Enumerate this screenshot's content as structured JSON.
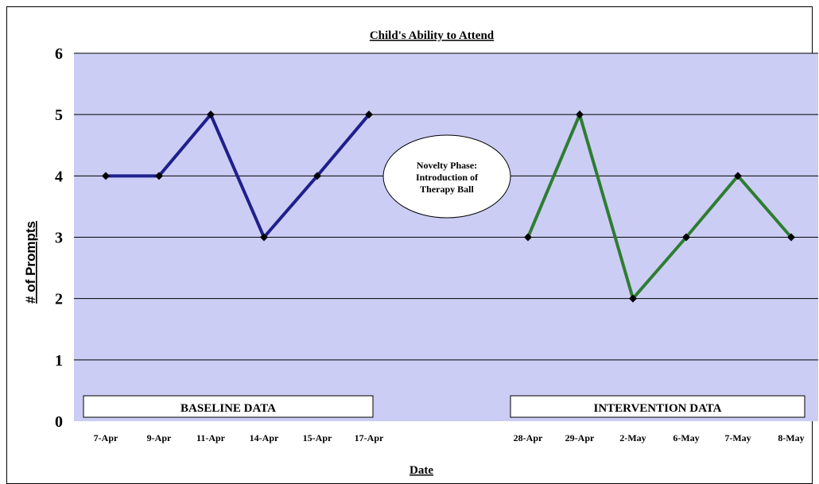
{
  "chart_data": {
    "type": "line",
    "title": "Child's Ability to Attend",
    "xlabel": "Date",
    "ylabel": "# of Prompts",
    "ylim": [
      0,
      6
    ],
    "yticks": [
      0,
      1,
      2,
      3,
      4,
      5,
      6
    ],
    "grid": true,
    "categories": [
      "7-Apr",
      "9-Apr",
      "11-Apr",
      "14-Apr",
      "15-Apr",
      "17-Apr",
      "28-Apr",
      "29-Apr",
      "2-May",
      "6-May",
      "7-May",
      "8-May"
    ],
    "series": [
      {
        "color": "#1f1f8c",
        "points": [
          {
            "x": "7-Apr",
            "y": 4
          },
          {
            "x": "9-Apr",
            "y": 4
          },
          {
            "x": "11-Apr",
            "y": 5
          },
          {
            "x": "14-Apr",
            "y": 3
          },
          {
            "x": "15-Apr",
            "y": 4
          },
          {
            "x": "17-Apr",
            "y": 5
          }
        ]
      },
      {
        "color": "#2e7d32",
        "points": [
          {
            "x": "28-Apr",
            "y": 3
          },
          {
            "x": "29-Apr",
            "y": 5
          },
          {
            "x": "2-May",
            "y": 2
          },
          {
            "x": "6-May",
            "y": 3
          },
          {
            "x": "7-May",
            "y": 4
          },
          {
            "x": "8-May",
            "y": 3
          }
        ]
      }
    ],
    "annotations": {
      "baseline_label": "BASELINE DATA",
      "intervention_label": "INTERVENTION DATA",
      "phase_note_lines": [
        "Novelty Phase:",
        "Introduction of",
        "Therapy Ball"
      ]
    },
    "colors": {
      "plot_background": "#cccdf5",
      "gridline": "#000000",
      "marker": "#000000"
    }
  }
}
